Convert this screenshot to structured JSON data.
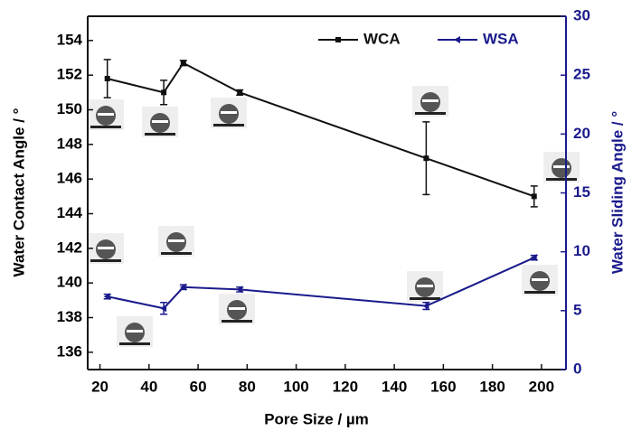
{
  "chart_data": {
    "type": "line",
    "x_label": "Pore Size / µm",
    "y_label": "Water Contact Angle / °",
    "y2_label": "Water Sliding Angle / °",
    "xlim": [
      15,
      210
    ],
    "xticks": [
      20,
      40,
      60,
      80,
      100,
      120,
      140,
      160,
      180,
      200
    ],
    "ylim": [
      135,
      155.4
    ],
    "yticks": [
      136,
      138,
      140,
      142,
      144,
      146,
      148,
      150,
      152,
      154
    ],
    "y2lim": [
      0,
      30
    ],
    "y2ticks": [
      0,
      5,
      10,
      15,
      20,
      25,
      30
    ],
    "legend": "top-right",
    "series": [
      {
        "name": "WCA",
        "color": "#111111",
        "marker": "square",
        "x": [
          23,
          46,
          54,
          77,
          153,
          197
        ],
        "values": [
          151.8,
          151.0,
          152.7,
          151.0,
          147.2,
          145.0
        ],
        "errors": [
          1.1,
          0.7,
          0.15,
          0.15,
          2.1,
          0.6
        ]
      },
      {
        "name": "WSA",
        "color": "#1a1a8c",
        "marker": "triangle",
        "axis": "y2",
        "x": [
          23,
          46,
          54,
          77,
          153,
          197
        ],
        "values": [
          6.2,
          5.2,
          7.0,
          6.8,
          5.4,
          9.5
        ],
        "errors": [
          0.2,
          0.5,
          0.2,
          0.2,
          0.3,
          0.2
        ]
      }
    ]
  }
}
